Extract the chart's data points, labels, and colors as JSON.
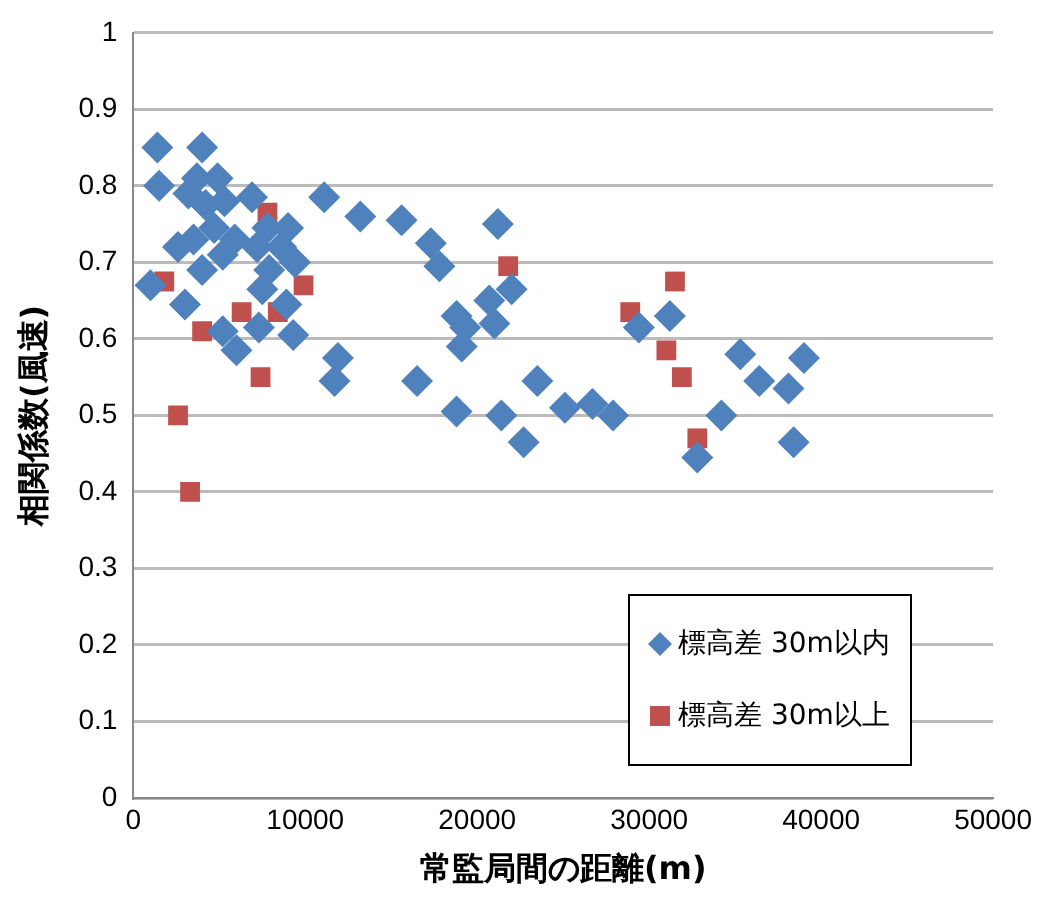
{
  "chart_data": {
    "type": "scatter",
    "xlabel": "常監局間の距離(m)",
    "ylabel": "相関係数(風速)",
    "xlim": [
      0,
      50000
    ],
    "xticks": [
      0,
      10000,
      20000,
      30000,
      40000,
      50000
    ],
    "ylim": [
      0,
      1
    ],
    "yticks": [
      0,
      0.1,
      0.2,
      0.3,
      0.4,
      0.5,
      0.6,
      0.7,
      0.8,
      0.9,
      1
    ],
    "grid": "y",
    "legend": "bottom right",
    "series": [
      {
        "name": "標高差 30m以内",
        "color": "#4f81bd",
        "marker": "diamond",
        "x": [
          1400,
          1500,
          4000,
          3700,
          3200,
          2600,
          4200,
          4900,
          5300,
          4700,
          3500,
          6900,
          4000,
          5200,
          5900,
          7200,
          7800,
          9000,
          8600,
          9400,
          7900,
          7500,
          1000,
          3000,
          5200,
          6000,
          7300,
          8900,
          9300,
          11100,
          13200,
          15600,
          11900,
          11700,
          17300,
          17800,
          21200,
          18800,
          19300,
          19100,
          20700,
          21000,
          22000,
          16500,
          18800,
          21400,
          22700,
          23500,
          25100,
          26700,
          27900,
          29400,
          31200,
          34200,
          32800,
          35300,
          36400,
          38100,
          39000,
          38400
        ],
        "values": [
          0.85,
          0.8,
          0.85,
          0.81,
          0.79,
          0.72,
          0.775,
          0.81,
          0.78,
          0.745,
          0.73,
          0.785,
          0.69,
          0.71,
          0.73,
          0.72,
          0.745,
          0.745,
          0.72,
          0.7,
          0.69,
          0.665,
          0.67,
          0.645,
          0.61,
          0.585,
          0.615,
          0.645,
          0.605,
          0.785,
          0.76,
          0.755,
          0.575,
          0.545,
          0.725,
          0.695,
          0.75,
          0.63,
          0.615,
          0.59,
          0.65,
          0.62,
          0.665,
          0.545,
          0.505,
          0.5,
          0.465,
          0.545,
          0.51,
          0.515,
          0.5,
          0.615,
          0.63,
          0.5,
          0.445,
          0.58,
          0.545,
          0.535,
          0.575,
          0.465
        ]
      },
      {
        "name": "標高差 30m以上",
        "color": "#c0504d",
        "marker": "square",
        "x": [
          1800,
          2600,
          3300,
          4000,
          7400,
          6300,
          7800,
          9000,
          9900,
          8400,
          21800,
          28900,
          31500,
          31000,
          31900,
          32800
        ],
        "values": [
          0.675,
          0.5,
          0.4,
          0.61,
          0.55,
          0.635,
          0.765,
          null,
          0.67,
          0.635,
          0.695,
          0.635,
          0.675,
          0.585,
          0.55,
          0.47
        ]
      }
    ]
  }
}
